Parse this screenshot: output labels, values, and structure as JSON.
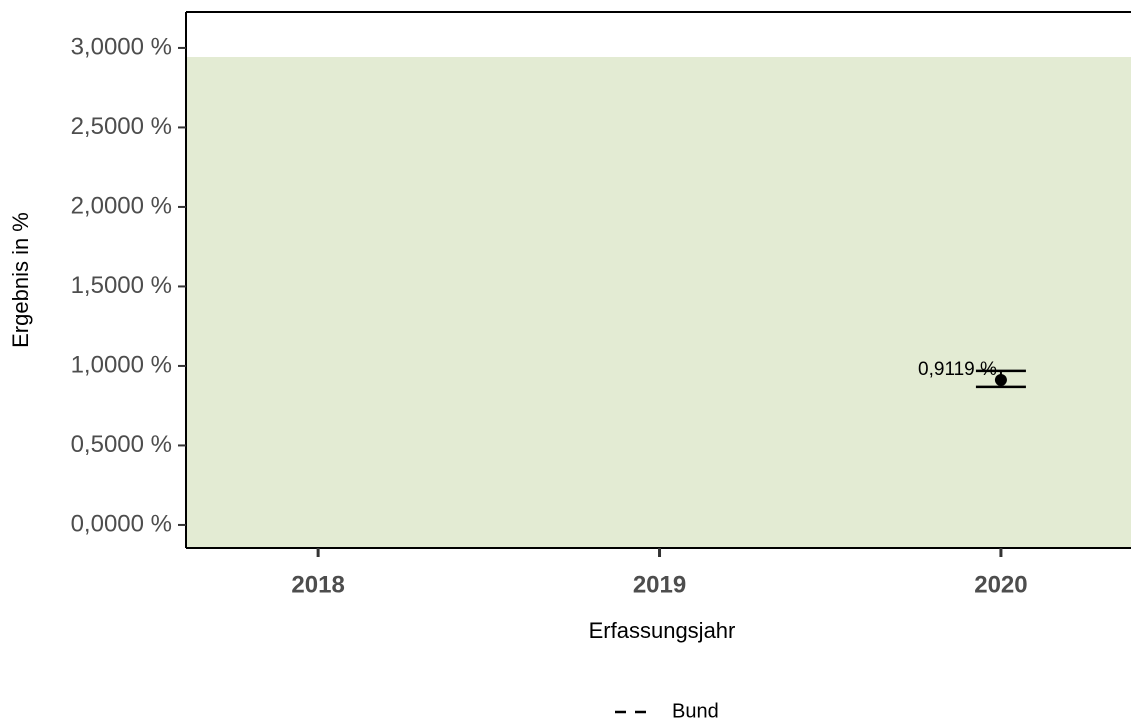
{
  "chart_data": {
    "type": "errorpoint",
    "x_label": "Erfassungsjahr",
    "y_label": "Ergebnis in %",
    "xlim": [
      2017.613,
      2020.381
    ],
    "xticks": [
      2018,
      2019,
      2020
    ],
    "ylim": [
      -0.145,
      3.226
    ],
    "yticks": [
      {
        "value": 0,
        "label": "0,0000 %"
      },
      {
        "value": 0.5,
        "label": "0,5000 %"
      },
      {
        "value": 1,
        "label": "1,0000 %"
      },
      {
        "value": 1.5,
        "label": "1,5000 %"
      },
      {
        "value": 2,
        "label": "2,0000 %"
      },
      {
        "value": 2.5,
        "label": "2,5000 %"
      },
      {
        "value": 3,
        "label": "3,0000 %"
      }
    ],
    "band": {
      "from": -0.145,
      "to": 2.943,
      "color": "#e3ebd3"
    },
    "series": [
      {
        "color": "#000000",
        "x": [
          2020
        ],
        "values": [
          0.9119
        ],
        "lower": [
          0.868
        ],
        "upper": [
          0.969
        ],
        "value_labels": [
          "0,9119 %"
        ]
      }
    ],
    "legend": [
      {
        "label": "Bund",
        "linestyle": "dashed",
        "color": "#000000"
      }
    ]
  }
}
